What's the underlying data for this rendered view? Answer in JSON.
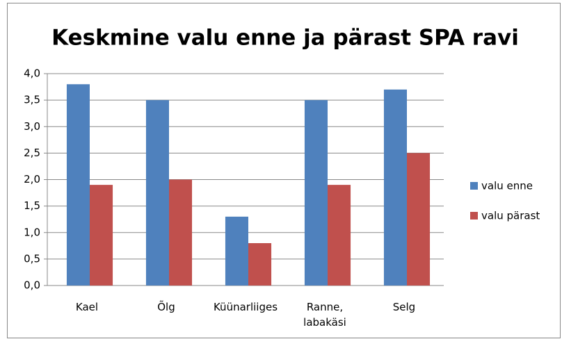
{
  "chart_data": {
    "type": "bar",
    "title": "Keskmine valu enne ja pärast SPA ravi",
    "categories": [
      "Kael",
      "Õlg",
      "Küünarliiges",
      "Ranne, labakäsi",
      "Selg"
    ],
    "series": [
      {
        "name": "valu enne",
        "color": "#4f81bd",
        "values": [
          3.8,
          3.5,
          1.3,
          3.5,
          3.7
        ]
      },
      {
        "name": "valu pärast",
        "color": "#c0504d",
        "values": [
          1.9,
          2.0,
          0.8,
          1.9,
          2.5
        ]
      }
    ],
    "ylim": [
      0,
      4
    ],
    "yticks": [
      {
        "value": 0,
        "label": "0,0"
      },
      {
        "value": 0.5,
        "label": "0,5"
      },
      {
        "value": 1,
        "label": "1,0"
      },
      {
        "value": 1.5,
        "label": "1,5"
      },
      {
        "value": 2,
        "label": "2,0"
      },
      {
        "value": 2.5,
        "label": "2,5"
      },
      {
        "value": 3,
        "label": "3,0"
      },
      {
        "value": 3.5,
        "label": "3,5"
      },
      {
        "value": 4,
        "label": "4,0"
      }
    ],
    "grid": true,
    "legend": "right"
  }
}
